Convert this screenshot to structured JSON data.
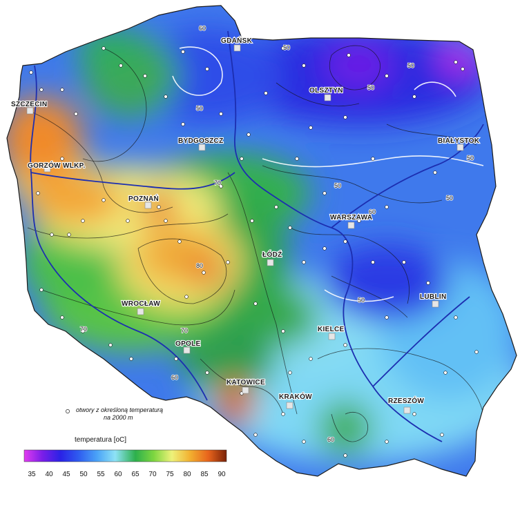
{
  "cities": [
    {
      "name": "GDAŃSK"
    },
    {
      "name": "SZCZECIN"
    },
    {
      "name": "OLSZTYN"
    },
    {
      "name": "BYDGOSZCZ"
    },
    {
      "name": "BIAŁYSTOK"
    },
    {
      "name": "GORZÓW WLKP."
    },
    {
      "name": "POZNAŃ"
    },
    {
      "name": "WARSZAWA"
    },
    {
      "name": "ŁÓDŹ"
    },
    {
      "name": "LUBLIN"
    },
    {
      "name": "WROCŁAW"
    },
    {
      "name": "OPOLE"
    },
    {
      "name": "KIELCE"
    },
    {
      "name": "KATOWICE"
    },
    {
      "name": "KRAKÓW"
    },
    {
      "name": "RZESZÓW"
    }
  ],
  "contour_labels": [
    "60",
    "50",
    "50",
    "50",
    "50",
    "50",
    "50",
    "60",
    "50",
    "80",
    "70",
    "70",
    "60",
    "60",
    "50",
    "70"
  ],
  "legend": {
    "boreholes_line1": "otwory z określoną temperaturą",
    "boreholes_line2": "na 2000 m",
    "title": "temperatura   [oC]",
    "ticks": [
      "35",
      "40",
      "45",
      "50",
      "55",
      "60",
      "65",
      "70",
      "75",
      "80",
      "85",
      "90"
    ],
    "colors": [
      "#e23cf0",
      "#7a1ee8",
      "#2a22e6",
      "#2f5df0",
      "#4aa3f7",
      "#8ee2f6",
      "#2db04c",
      "#7dd640",
      "#eef27a",
      "#f2b030",
      "#e8641c",
      "#7a2208"
    ]
  }
}
